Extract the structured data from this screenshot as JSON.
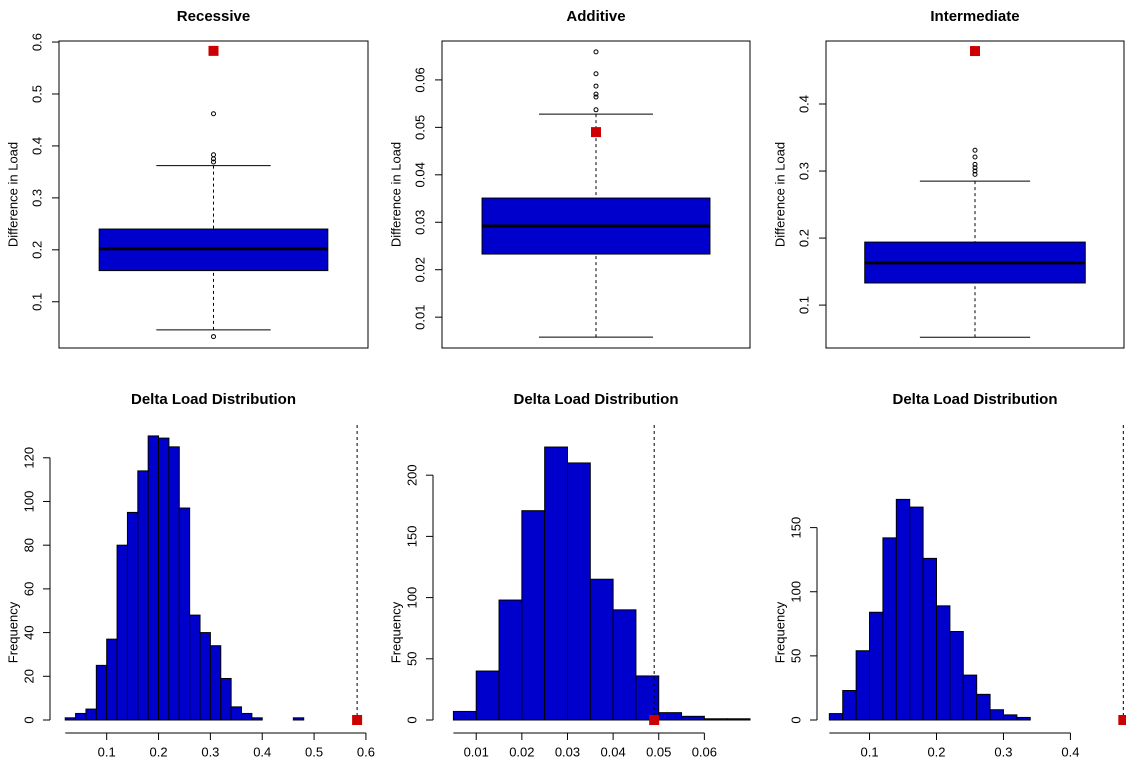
{
  "chart_data": [
    {
      "type": "box",
      "title": "Recessive",
      "ylabel": "Difference in Load",
      "color": "#0000cc",
      "marker_color": "#cc0000",
      "q1": 0.16,
      "median": 0.202,
      "q3": 0.24,
      "whisker_low": 0.046,
      "whisker_high": 0.362,
      "outliers": [
        0.033,
        0.369,
        0.375,
        0.383,
        0.462
      ],
      "marker": 0.583,
      "ylim": [
        0.011,
        0.602
      ],
      "yticks": [
        0.1,
        0.2,
        0.3,
        0.4,
        0.5,
        0.6
      ]
    },
    {
      "type": "box",
      "title": "Additive",
      "ylabel": "Difference in Load",
      "color": "#0000cc",
      "marker_color": "#cc0000",
      "q1": 0.0233,
      "median": 0.0292,
      "q3": 0.0351,
      "whisker_low": 0.0058,
      "whisker_high": 0.0528,
      "outliers": [
        0.0537,
        0.0564,
        0.057,
        0.0587,
        0.0613,
        0.0659
      ],
      "marker": 0.049,
      "ylim": [
        0.0035,
        0.0682
      ],
      "yticks": [
        0.01,
        0.02,
        0.03,
        0.04,
        0.05,
        0.06
      ]
    },
    {
      "type": "box",
      "title": "Intermediate",
      "ylabel": "Difference in Load",
      "color": "#0000cc",
      "marker_color": "#cc0000",
      "q1": 0.133,
      "median": 0.163,
      "q3": 0.194,
      "whisker_low": 0.052,
      "whisker_high": 0.285,
      "outliers": [
        0.295,
        0.3,
        0.305,
        0.31,
        0.321,
        0.331
      ],
      "marker": 0.479,
      "ylim": [
        0.036,
        0.494
      ],
      "yticks": [
        0.1,
        0.2,
        0.3,
        0.4
      ]
    },
    {
      "type": "histogram",
      "title": "Delta Load Distribution",
      "ylabel": "Frequency",
      "color": "#0000cc",
      "marker_color": "#cc0000",
      "bins": [
        0.02,
        0.04,
        0.06,
        0.08,
        0.1,
        0.12,
        0.14,
        0.16,
        0.18,
        0.2,
        0.22,
        0.24,
        0.26,
        0.28,
        0.3,
        0.32,
        0.34,
        0.36,
        0.38,
        0.4,
        0.42,
        0.44,
        0.46,
        0.48
      ],
      "counts": [
        1,
        3,
        5,
        25,
        37,
        80,
        95,
        114,
        130,
        129,
        125,
        97,
        48,
        40,
        34,
        19,
        6,
        3,
        1,
        0,
        0,
        0,
        1
      ],
      "marker": 0.583,
      "xlim": [
        0.008,
        0.604
      ],
      "xticks": [
        0.1,
        0.2,
        0.3,
        0.4,
        0.5,
        0.6
      ],
      "ylim": [
        0,
        135
      ],
      "yticks": [
        0,
        20,
        40,
        60,
        80,
        100,
        120
      ]
    },
    {
      "type": "histogram",
      "title": "Delta Load Distribution",
      "ylabel": "Frequency",
      "color": "#0000cc",
      "marker_color": "#cc0000",
      "bins": [
        0.005,
        0.01,
        0.015,
        0.02,
        0.025,
        0.03,
        0.035,
        0.04,
        0.045,
        0.05,
        0.055,
        0.06,
        0.065,
        0.07
      ],
      "counts": [
        7,
        40,
        98,
        171,
        223,
        210,
        115,
        90,
        36,
        6,
        3,
        1,
        1
      ],
      "marker": 0.049,
      "xlim": [
        0.0025,
        0.07
      ],
      "xticks": [
        0.01,
        0.02,
        0.03,
        0.04,
        0.05,
        0.06
      ],
      "ylim": [
        0,
        241
      ],
      "yticks": [
        0,
        50,
        100,
        150,
        200
      ]
    },
    {
      "type": "histogram",
      "title": "Delta Load Distribution",
      "ylabel": "Frequency",
      "color": "#0000cc",
      "marker_color": "#cc0000",
      "bins": [
        0.04,
        0.06,
        0.08,
        0.1,
        0.12,
        0.14,
        0.16,
        0.18,
        0.2,
        0.22,
        0.24,
        0.26,
        0.28,
        0.3,
        0.32,
        0.34
      ],
      "counts": [
        5,
        23,
        54,
        84,
        142,
        172,
        166,
        126,
        89,
        69,
        35,
        20,
        8,
        4,
        2
      ],
      "marker": 0.479,
      "xlim": [
        0.035,
        0.48
      ],
      "xticks": [
        0.1,
        0.2,
        0.3,
        0.4
      ],
      "ylim": [
        0,
        230
      ],
      "yticks": [
        0,
        50,
        100,
        150
      ]
    }
  ]
}
